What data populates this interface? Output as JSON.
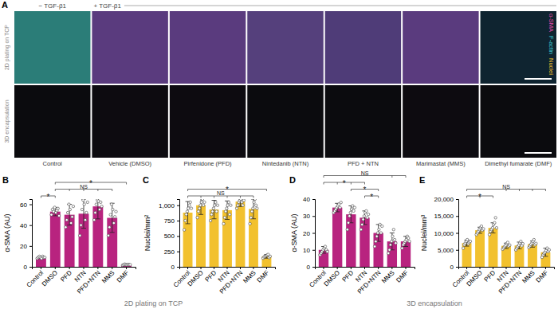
{
  "panel_a": {
    "title": "A",
    "conditions": [
      "− TGF-β1",
      "+ TGF-β1"
    ],
    "rows": [
      "2D plating on TCP",
      "3D encapsulation"
    ],
    "columns": [
      "Control",
      "Vehicle (DMSO)",
      "Pirfenidone (PFD)",
      "Nintedanib (NTN)",
      "PFD + NTN",
      "Marimastat (MMS)",
      "Dimethyl fumarate (DMF)"
    ],
    "channels": [
      {
        "name": "α-SMA",
        "color": "#e04aa8"
      },
      {
        "name": "F-actin",
        "color": "#3ec9d6"
      },
      {
        "name": "Nuclei",
        "color": "#f2c12e"
      }
    ]
  },
  "footer": [
    "2D plating on TCP",
    "3D encapsulation"
  ],
  "chart_data": [
    {
      "type": "bar",
      "title": "B",
      "ylabel": "α-SMA (AU)",
      "color": "#b8237f",
      "categories": [
        "Control",
        "DMSO",
        "PFD",
        "NTN",
        "PFD+NTN",
        "MMS",
        "DMF"
      ],
      "values": [
        9,
        53,
        50,
        51,
        58,
        47,
        2
      ],
      "errors": [
        1,
        4,
        10,
        14,
        12,
        14,
        0.5
      ],
      "points": [
        [
          8,
          9,
          10,
          9,
          8,
          10,
          9,
          9
        ],
        [
          50,
          55,
          53,
          57,
          52,
          54,
          56,
          49
        ],
        [
          38,
          45,
          52,
          60,
          55,
          42,
          48,
          58
        ],
        [
          30,
          40,
          55,
          64,
          60,
          45,
          52,
          62
        ],
        [
          45,
          52,
          60,
          64,
          63,
          55,
          62,
          58
        ],
        [
          30,
          38,
          50,
          60,
          55,
          42,
          48,
          53
        ],
        [
          1.5,
          2,
          2.5,
          2,
          1.8,
          2.2,
          2,
          2
        ]
      ],
      "ylim": [
        0,
        65
      ],
      "yticks": [
        0,
        20,
        40,
        60
      ],
      "annotations": [
        {
          "text": "*",
          "from": "Control",
          "to": [
            "DMSO"
          ]
        },
        {
          "text": "NS",
          "from": "DMSO",
          "to": [
            "PFD",
            "NTN",
            "PFD+NTN",
            "MMS"
          ]
        },
        {
          "text": "*",
          "from": "DMSO",
          "to": [
            "DMF"
          ]
        }
      ]
    },
    {
      "type": "bar",
      "title": "C",
      "ylabel": "Nuclei/mm²",
      "color": "#f2c12e",
      "categories": [
        "Control",
        "DMSO",
        "PFD",
        "NTN",
        "PFD+NTN",
        "MMS",
        "DMF"
      ],
      "values": [
        880,
        1000,
        930,
        920,
        1060,
        940,
        170
      ],
      "errors": [
        180,
        150,
        150,
        150,
        80,
        160,
        30
      ],
      "points": [
        [
          600,
          750,
          850,
          900,
          950,
          1000,
          1050,
          950
        ],
        [
          800,
          900,
          950,
          1000,
          1050,
          1100,
          1000,
          1050
        ],
        [
          750,
          850,
          900,
          950,
          1000,
          1050,
          900,
          1000
        ],
        [
          700,
          800,
          900,
          950,
          1000,
          1050,
          850,
          1000
        ],
        [
          950,
          1000,
          1050,
          1080,
          1100,
          1050,
          1000,
          1080
        ],
        [
          700,
          800,
          900,
          950,
          1050,
          1100,
          1000,
          950
        ],
        [
          140,
          160,
          170,
          180,
          190,
          200,
          150,
          170
        ]
      ],
      "ylim": [
        0,
        1100
      ],
      "yticks": [
        0,
        250,
        500,
        750,
        {
          "value": 1000,
          "label": "1,000"
        }
      ],
      "annotations": [
        {
          "text": "NS",
          "from": "Control",
          "to": [
            "DMSO",
            "PFD",
            "NTN",
            "PFD+NTN",
            "MMS"
          ]
        },
        {
          "text": "*",
          "from": "Control",
          "to": [
            "DMF"
          ]
        }
      ]
    },
    {
      "type": "bar",
      "title": "D",
      "ylabel": "α-SMA (AU)",
      "color": "#b8237f",
      "categories": [
        "Control",
        "DMSO",
        "PFD",
        "NTN",
        "PFD+NTN",
        "MMS",
        "DMF"
      ],
      "values": [
        10,
        35,
        31,
        29,
        20,
        15,
        15
      ],
      "errors": [
        2,
        2.5,
        5,
        4,
        5,
        5,
        3
      ],
      "points": [
        [
          7,
          8,
          9,
          10,
          11,
          12,
          10,
          9
        ],
        [
          32,
          33,
          34,
          35,
          36,
          37,
          35,
          38
        ],
        [
          22,
          26,
          30,
          32,
          34,
          36,
          33,
          35
        ],
        [
          22,
          25,
          28,
          30,
          32,
          33,
          29,
          31
        ],
        [
          12,
          15,
          18,
          20,
          22,
          25,
          20,
          24
        ],
        [
          8,
          10,
          13,
          15,
          18,
          22,
          16,
          14
        ],
        [
          11,
          13,
          14,
          15,
          16,
          18,
          17,
          15
        ]
      ],
      "ylim": [
        0,
        40
      ],
      "yticks": [
        0,
        10,
        20,
        30,
        40
      ],
      "annotations": [
        {
          "text": "*",
          "from": "NTN",
          "to": [
            "PFD+NTN"
          ]
        },
        {
          "text": "*",
          "from": "PFD",
          "to": [
            "PFD+NTN"
          ]
        },
        {
          "text": "*",
          "from": "Control",
          "to": [
            "DMSO",
            "PFD",
            "NTN"
          ]
        },
        {
          "text": "NS",
          "from": "Control",
          "to": [
            "MMS",
            "DMF"
          ]
        }
      ]
    },
    {
      "type": "bar",
      "title": "E",
      "ylabel": "Nuclei/mm³",
      "color": "#f2c12e",
      "categories": [
        "Control",
        "DMSO",
        "PFD",
        "NTN",
        "PFD+NTN",
        "MMS",
        "DMF"
      ],
      "values": [
        7000,
        10800,
        11500,
        6200,
        6300,
        6700,
        4300
      ],
      "errors": [
        900,
        900,
        1500,
        800,
        1000,
        900,
        1200
      ],
      "points": [
        [
          5500,
          6500,
          7000,
          7500,
          8000,
          6800,
          7200,
          7500
        ],
        [
          9500,
          10000,
          10500,
          11000,
          11500,
          12000,
          10800,
          11200
        ],
        [
          9500,
          10500,
          11000,
          11500,
          12500,
          13000,
          14500,
          11500
        ],
        [
          5200,
          5600,
          6000,
          6300,
          6800,
          7200,
          6100,
          6400
        ],
        [
          5000,
          5500,
          6000,
          6400,
          7000,
          7500,
          6200,
          6800
        ],
        [
          5700,
          6200,
          6600,
          7000,
          7500,
          8000,
          6500,
          6900
        ],
        [
          2800,
          3500,
          4000,
          4300,
          4800,
          5500,
          4500,
          5000
        ]
      ],
      "ylim": [
        0,
        20000
      ],
      "yticks": [
        0,
        {
          "value": 5000,
          "label": "5,000"
        },
        {
          "value": 10000,
          "label": "10,000"
        },
        {
          "value": 15000,
          "label": "15,000"
        },
        {
          "value": 20000,
          "label": "20,000"
        }
      ],
      "annotations": [
        {
          "text": "*",
          "from": "Control",
          "to": [
            "DMSO",
            "PFD"
          ]
        },
        {
          "text": "NS",
          "from": "Control",
          "to": [
            "NTN",
            "PFD+NTN",
            "MMS",
            "DMF"
          ]
        }
      ]
    }
  ]
}
